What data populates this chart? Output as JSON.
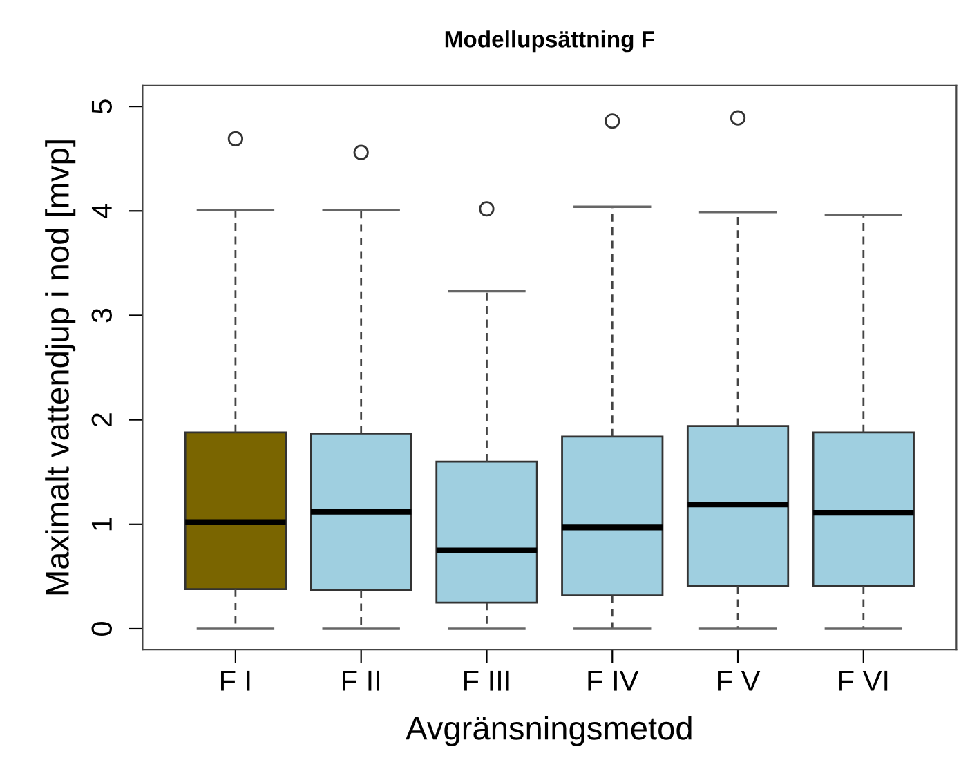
{
  "chart_data": {
    "type": "box",
    "title": "Modellupsättning F",
    "xlabel": "Avgränsningsmetod",
    "ylabel": "Maximalt vattendjup i nod [mvp]",
    "categories": [
      "F I",
      "F II",
      "F III",
      "F IV",
      "F V",
      "F VI"
    ],
    "colors": [
      "#7a6500",
      "#9fcfe0",
      "#9fcfe0",
      "#9fcfe0",
      "#9fcfe0",
      "#9fcfe0"
    ],
    "boxes": [
      {
        "low": 0,
        "q1": 0.38,
        "median": 1.02,
        "q3": 1.88,
        "high": 4.01,
        "outliers": [
          4.69
        ]
      },
      {
        "low": 0,
        "q1": 0.37,
        "median": 1.12,
        "q3": 1.87,
        "high": 4.01,
        "outliers": [
          4.56
        ]
      },
      {
        "low": 0,
        "q1": 0.25,
        "median": 0.75,
        "q3": 1.6,
        "high": 3.23,
        "outliers": [
          4.02
        ]
      },
      {
        "low": 0,
        "q1": 0.32,
        "median": 0.97,
        "q3": 1.84,
        "high": 4.04,
        "outliers": [
          4.86
        ]
      },
      {
        "low": 0,
        "q1": 0.41,
        "median": 1.19,
        "q3": 1.94,
        "high": 3.99,
        "outliers": [
          4.89
        ]
      },
      {
        "low": 0,
        "q1": 0.41,
        "median": 1.11,
        "q3": 1.88,
        "high": 3.96
      }
    ],
    "ylim": [
      -0.2,
      5.2
    ],
    "yticks": [
      0,
      1,
      2,
      3,
      4,
      5
    ]
  }
}
